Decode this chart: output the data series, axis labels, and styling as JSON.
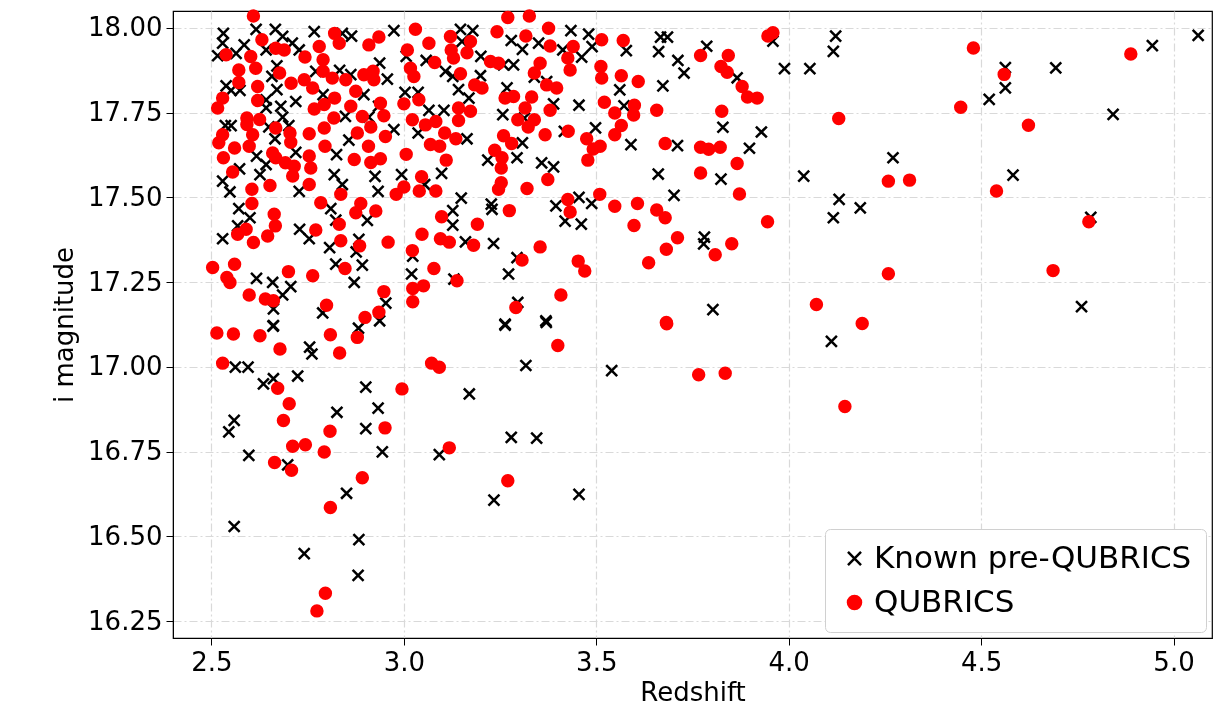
{
  "chart_data": {
    "type": "scatter",
    "xlabel": "Redshift",
    "ylabel": "i magnitude",
    "xlim": [
      2.4,
      5.1
    ],
    "ylim": [
      16.2,
      18.05
    ],
    "xticks": [
      {
        "value": 2.5,
        "label": "2.5"
      },
      {
        "value": 3,
        "label": "3.0"
      },
      {
        "value": 3.5,
        "label": "3.5"
      },
      {
        "value": 4,
        "label": "4.0"
      },
      {
        "value": 4.5,
        "label": "4.5"
      },
      {
        "value": 5,
        "label": "5.0"
      }
    ],
    "yticks": [
      {
        "value": 16.25,
        "label": "16.25"
      },
      {
        "value": 16.5,
        "label": "16.50"
      },
      {
        "value": 16.75,
        "label": "16.75"
      },
      {
        "value": 17,
        "label": "17.00"
      },
      {
        "value": 17.25,
        "label": "17.25"
      },
      {
        "value": 17.5,
        "label": "17.50"
      },
      {
        "value": 17.75,
        "label": "17.75"
      },
      {
        "value": 18,
        "label": "18.00"
      }
    ],
    "grid": true,
    "legend": "bottom right",
    "series": [
      {
        "name": "Known pre-QUBRICS",
        "color": "#000000",
        "marker": "cross",
        "x": [
          2.531,
          2.529,
          2.516,
          2.616,
          2.666,
          2.685,
          2.585,
          2.564,
          2.642,
          2.71,
          2.728,
          2.767,
          2.84,
          2.864,
          2.974,
          2.937,
          3.147,
          3.179,
          3.151,
          3.2,
          3.279,
          3.308,
          3.35,
          3.434,
          3.48,
          3.462,
          3.413,
          3.489,
          3.578,
          3.667,
          3.685,
          3.662,
          3.712,
          3.728,
          3.673,
          3.561,
          3.455,
          3.572,
          3.389,
          3.371,
          3.339,
          3.259,
          3.285,
          3.268,
          3.199,
          3.169,
          3.142,
          3.108,
          3.127,
          3.058,
          3.006,
          3.003,
          3.037,
          3.065,
          3.104,
          2.957,
          2.934,
          2.896,
          2.862,
          2.833,
          2.771,
          2.79,
          2.719,
          2.67,
          2.67,
          2.642,
          2.657,
          2.642,
          2.68,
          2.538,
          2.551,
          2.574,
          2.536,
          2.551,
          2.649,
          2.685,
          2.701,
          2.665,
          2.848,
          2.909,
          2.974,
          3.037,
          3.164,
          3.257,
          3.313,
          3.308,
          3.417,
          3.498,
          3.59,
          3.711,
          2.857,
          2.719,
          2.617,
          2.573,
          2.642,
          2.529,
          2.548,
          2.626,
          2.728,
          2.819,
          2.825,
          2.84,
          2.933,
          2.925,
          2.994,
          3.098,
          3.054,
          3.218,
          3.294,
          3.358,
          3.389,
          3.661,
          3.702,
          3.395,
          3.455,
          3.488,
          3.419,
          3.461,
          3.149,
          3.127,
          3.127,
          3.16,
          3.227,
          3.229,
          3.233,
          2.905,
          2.81,
          2.823,
          2.729,
          2.754,
          2.807,
          2.876,
          2.883,
          2.571,
          2.6,
          2.568,
          2.529,
          2.823,
          2.892,
          2.871,
          3.023,
          3.02,
          3.294,
          3.272,
          3.13,
          2.617,
          2.659,
          2.706,
          2.685,
          2.661,
          2.953,
          2.789,
          2.937,
          3.296,
          3.369,
          3.263,
          2.661,
          2.66,
          2.882,
          2.755,
          2.761,
          3.263,
          3.37,
          2.562,
          2.595,
          2.635,
          2.661,
          2.724,
          2.901,
          3.317,
          3.54,
          3.17,
          2.933,
          2.826,
          2.559,
          2.545,
          2.901,
          2.944,
          2.597,
          2.698,
          3.092,
          3.279,
          3.345,
          2.851,
          3.234,
          3.455,
          2.559,
          2.883,
          2.741,
          2.881,
          3.787,
          3.959,
          3.989,
          4.055,
          4.122,
          4.116,
          3.866,
          3.829,
          3.929,
          3.898,
          3.824,
          4.039,
          4.131,
          4.116,
          4.186,
          4.271,
          4.521,
          4.563,
          4.563,
          4.694,
          4.843,
          4.945,
          5.064,
          4.583,
          4.785,
          3.781,
          3.779,
          3.803,
          4.111,
          4.761
        ],
        "values": [
          17.984,
          17.955,
          17.918,
          17.996,
          17.996,
          17.975,
          17.95,
          17.925,
          17.935,
          17.955,
          17.935,
          17.989,
          17.984,
          17.976,
          17.992,
          17.896,
          17.996,
          17.992,
          17.96,
          17.916,
          17.963,
          17.937,
          17.955,
          17.992,
          17.982,
          17.914,
          17.935,
          17.945,
          17.933,
          17.973,
          17.973,
          17.93,
          17.904,
          17.867,
          17.829,
          17.817,
          17.772,
          17.77,
          17.776,
          17.842,
          17.855,
          17.891,
          17.891,
          17.823,
          17.859,
          17.793,
          17.818,
          17.872,
          17.857,
          17.904,
          17.916,
          17.81,
          17.81,
          17.757,
          17.757,
          17.849,
          17.769,
          17.803,
          17.862,
          17.875,
          17.872,
          17.803,
          17.783,
          17.818,
          17.888,
          17.788,
          17.857,
          17.764,
          17.769,
          17.829,
          17.816,
          17.816,
          17.712,
          17.712,
          17.708,
          17.737,
          17.712,
          17.673,
          17.739,
          17.737,
          17.7,
          17.69,
          17.673,
          17.744,
          17.734,
          17.661,
          17.695,
          17.705,
          17.656,
          17.653,
          17.669,
          17.633,
          17.622,
          17.584,
          17.597,
          17.548,
          17.516,
          17.567,
          17.518,
          17.567,
          17.626,
          17.538,
          17.518,
          17.562,
          17.567,
          17.571,
          17.538,
          17.61,
          17.617,
          17.602,
          17.59,
          17.569,
          17.506,
          17.475,
          17.5,
          17.482,
          17.43,
          17.421,
          17.498,
          17.461,
          17.418,
          17.369,
          17.48,
          17.465,
          17.364,
          17.432,
          17.467,
          17.433,
          17.406,
          17.378,
          17.352,
          17.339,
          17.376,
          17.467,
          17.44,
          17.416,
          17.378,
          17.303,
          17.3,
          17.249,
          17.327,
          17.274,
          17.322,
          17.274,
          17.259,
          17.261,
          17.249,
          17.237,
          17.212,
          17.171,
          17.188,
          17.159,
          17.136,
          17.19,
          17.136,
          17.126,
          17.122,
          17.12,
          17.114,
          17.058,
          17.038,
          17.123,
          17.131,
          16.999,
          16.999,
          16.95,
          16.965,
          16.973,
          16.94,
          17.004,
          16.989,
          16.92,
          16.878,
          16.866,
          16.842,
          16.808,
          16.818,
          16.749,
          16.739,
          16.711,
          16.741,
          16.792,
          16.79,
          16.627,
          16.607,
          16.624,
          16.529,
          16.49,
          16.449,
          16.385,
          17.946,
          17.961,
          17.88,
          17.88,
          17.976,
          17.931,
          17.853,
          17.707,
          17.693,
          17.645,
          17.554,
          17.563,
          17.494,
          17.44,
          17.469,
          17.617,
          17.789,
          17.883,
          17.823,
          17.882,
          17.745,
          17.948,
          17.978,
          17.566,
          17.441,
          17.383,
          17.363,
          17.169,
          17.075,
          17.178
        ]
      },
      {
        "name": "QUBRICS",
        "color": "#ff0000",
        "marker": "circle",
        "x": [
          2.609,
          3.27,
          3.326,
          2.82,
          3.03,
          3.242,
          3.376,
          2.631,
          2.78,
          2.832,
          2.909,
          2.935,
          3.009,
          3.065,
          3.121,
          3.123,
          3.173,
          3.317,
          3.38,
          3.44,
          3.514,
          3.57,
          2.538,
          2.602,
          2.667,
          2.689,
          2.743,
          2.79,
          3.129,
          3.164,
          3.225,
          3.246,
          3.354,
          3.426,
          2.571,
          2.615,
          2.677,
          2.79,
          2.896,
          2.92,
          3.017,
          3.08,
          3.147,
          3.339,
          3.432,
          3.512,
          3.514,
          3.565,
          3.609,
          2.571,
          2.62,
          2.707,
          2.741,
          2.763,
          2.814,
          2.849,
          2.875,
          2.922,
          3.026,
          3.184,
          3.203,
          3.371,
          3.397,
          2.529,
          2.516,
          2.62,
          2.767,
          2.793,
          2.82,
          2.862,
          2.939,
          3.0,
          3.039,
          3.142,
          3.173,
          3.263,
          3.285,
          3.315,
          3.332,
          3.38,
          3.521,
          3.548,
          3.599,
          3.657,
          3.597,
          2.592,
          2.592,
          2.625,
          2.667,
          2.818,
          2.892,
          2.914,
          2.948,
          3.022,
          3.083,
          3.056,
          3.142,
          3.296,
          3.323,
          3.339,
          3.565,
          3.427,
          2.529,
          2.519,
          2.607,
          2.704,
          2.754,
          2.793,
          2.879,
          2.952,
          3.106,
          3.135,
          3.259,
          3.28,
          3.367,
          3.475,
          3.548,
          2.56,
          2.598,
          2.659,
          2.706,
          2.795,
          2.908,
          3.069,
          3.093,
          3.492,
          3.51,
          3.679,
          2.531,
          2.667,
          2.754,
          2.871,
          2.914,
          2.939,
          3.006,
          3.11,
          3.236,
          3.255,
          3.478,
          2.555,
          2.692,
          2.715,
          2.758,
          3.253,
          2.711,
          2.754,
          2.652,
          3.046,
          3.0,
          3.04,
          3.083,
          2.98,
          3.253,
          3.246,
          3.374,
          3.32,
          2.605,
          2.605,
          2.836,
          2.888,
          2.875,
          2.927,
          2.784,
          3.426,
          3.509,
          3.548,
          3.607,
          3.657,
          3.679,
          3.432,
          3.274,
          2.663,
          2.666,
          2.568,
          2.59,
          2.646,
          2.609,
          2.771,
          2.832,
          2.836,
          2.885,
          2.959,
          3.047,
          3.095,
          3.118,
          3.098,
          3.191,
          3.181,
          3.598,
          3.711,
          3.682,
          3.022,
          3.354,
          2.503,
          2.56,
          2.54,
          2.548,
          2.7,
          2.763,
          2.847,
          3.078,
          3.307,
          3.453,
          3.47,
          3.636,
          3.138,
          2.598,
          2.64,
          2.661,
          3.051,
          3.023,
          2.948,
          3.408,
          2.799,
          3.023,
          3.291,
          2.935,
          2.899,
          3.682,
          2.514,
          2.557,
          2.626,
          2.678,
          2.809,
          2.833,
          2.879,
          2.529,
          3.072,
          3.092,
          3.4,
          3.683,
          2.672,
          2.995,
          2.702,
          2.687,
          2.808,
          2.951,
          2.711,
          2.744,
          2.793,
          2.664,
          2.708,
          3.118,
          2.892,
          3.27,
          2.809,
          2.796,
          2.774,
          3.771,
          3.843,
          3.824,
          3.84,
          3.879,
          3.893,
          3.918,
          3.946,
          3.959,
          3.826,
          4.13,
          4.48,
          4.447,
          4.56,
          4.623,
          4.889,
          3.771,
          3.792,
          3.822,
          3.771,
          3.866,
          3.872,
          3.945,
          4.259,
          4.314,
          4.54,
          4.78,
          3.852,
          3.809,
          4.259,
          4.687,
          4.072,
          4.191,
          3.766,
          3.835,
          4.146
        ],
        "values": [
          18.035,
          18.031,
          18.035,
          17.984,
          17.996,
          17.989,
          17.999,
          17.965,
          17.945,
          17.955,
          17.95,
          17.973,
          17.935,
          17.955,
          17.975,
          17.935,
          17.96,
          17.976,
          17.947,
          17.945,
          17.965,
          17.963,
          17.921,
          17.916,
          17.94,
          17.935,
          17.914,
          17.906,
          17.911,
          17.927,
          17.901,
          17.896,
          17.896,
          17.911,
          17.876,
          17.881,
          17.867,
          17.872,
          17.862,
          17.872,
          17.881,
          17.898,
          17.865,
          17.867,
          17.876,
          17.886,
          17.852,
          17.859,
          17.842,
          17.839,
          17.827,
          17.837,
          17.847,
          17.823,
          17.852,
          17.847,
          17.813,
          17.847,
          17.857,
          17.832,
          17.823,
          17.832,
          17.823,
          17.793,
          17.764,
          17.786,
          17.761,
          17.774,
          17.793,
          17.769,
          17.778,
          17.776,
          17.788,
          17.764,
          17.754,
          17.793,
          17.798,
          17.764,
          17.796,
          17.757,
          17.781,
          17.749,
          17.772,
          17.757,
          17.743,
          17.734,
          17.715,
          17.73,
          17.705,
          17.734,
          17.739,
          17.708,
          17.741,
          17.729,
          17.724,
          17.714,
          17.727,
          17.729,
          17.708,
          17.729,
          17.712,
          17.695,
          17.685,
          17.661,
          17.685,
          17.69,
          17.688,
          17.705,
          17.69,
          17.68,
          17.69,
          17.673,
          17.682,
          17.659,
          17.685,
          17.673,
          17.685,
          17.646,
          17.651,
          17.631,
          17.663,
          17.651,
          17.651,
          17.656,
          17.651,
          17.643,
          17.651,
          17.659,
          17.617,
          17.617,
          17.622,
          17.612,
          17.603,
          17.614,
          17.627,
          17.61,
          17.639,
          17.617,
          17.61,
          17.575,
          17.602,
          17.592,
          17.587,
          17.587,
          17.563,
          17.538,
          17.535,
          17.561,
          17.531,
          17.519,
          17.519,
          17.509,
          17.543,
          17.524,
          17.553,
          17.526,
          17.524,
          17.482,
          17.509,
          17.482,
          17.455,
          17.46,
          17.484,
          17.494,
          17.509,
          17.474,
          17.482,
          17.463,
          17.44,
          17.457,
          17.461,
          17.45,
          17.416,
          17.391,
          17.406,
          17.386,
          17.367,
          17.404,
          17.421,
          17.372,
          17.357,
          17.368,
          17.391,
          17.378,
          17.368,
          17.443,
          17.421,
          17.359,
          17.417,
          17.381,
          17.347,
          17.343,
          17.354,
          17.293,
          17.303,
          17.264,
          17.249,
          17.281,
          17.269,
          17.29,
          17.29,
          17.315,
          17.312,
          17.283,
          17.307,
          17.254,
          17.212,
          17.2,
          17.195,
          17.239,
          17.231,
          17.222,
          17.212,
          17.182,
          17.192,
          17.175,
          17.161,
          17.146,
          17.131,
          17.1,
          17.097,
          17.092,
          17.053,
          17.095,
          17.041,
          17.087,
          17.011,
          17.011,
          16.999,
          17.063,
          17.127,
          16.937,
          16.935,
          16.891,
          16.842,
          16.81,
          16.82,
          16.766,
          16.77,
          16.749,
          16.718,
          16.695,
          16.761,
          16.673,
          16.664,
          16.585,
          16.332,
          16.28,
          17.919,
          17.919,
          17.886,
          17.869,
          17.827,
          17.796,
          17.793,
          17.976,
          17.986,
          17.754,
          17.733,
          17.941,
          17.766,
          17.863,
          17.713,
          17.923,
          17.648,
          17.642,
          17.648,
          17.572,
          17.6,
          17.51,
          17.428,
          17.548,
          17.551,
          17.519,
          17.428,
          17.363,
          17.331,
          17.275,
          17.284,
          17.184,
          17.128,
          16.977,
          16.981,
          16.883
        ]
      }
    ]
  }
}
